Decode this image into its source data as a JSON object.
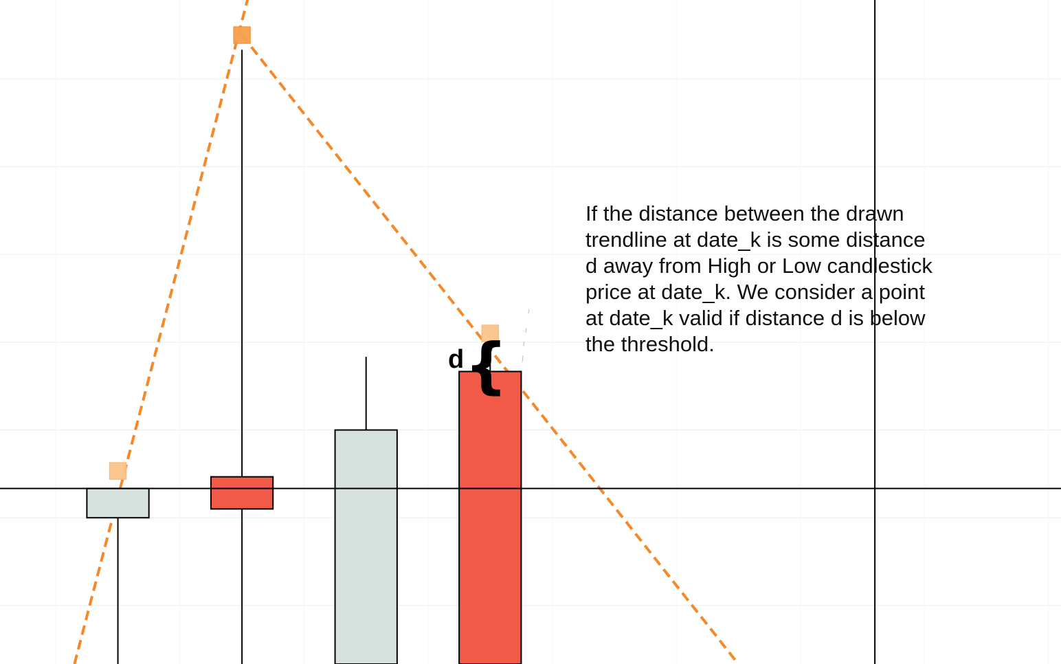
{
  "annotation": {
    "text": "If the distance between the drawn trendline at date_k is some distance d away from High or Low candlestick price at date_k. We consider a point at date_k valid if distance d is below the threshold.",
    "distance_label": "d",
    "brace_glyph": "{"
  },
  "colors": {
    "bullish_body": "#d5e2de",
    "bearish_body": "#f15a47",
    "trendline": "#f5892a",
    "pivot_marker_strong": "#f6a04d",
    "pivot_marker_light": "#fbc58c",
    "crosshair": "#000000",
    "grid": "#eeeeee"
  },
  "chart_data": {
    "type": "candlestick",
    "candles": [
      {
        "direction": "up",
        "open": 0.0,
        "close": 1.0,
        "high": 1.0,
        "low": -5.0
      },
      {
        "direction": "down",
        "open": 1.4,
        "close": 0.3,
        "high": 16.0,
        "low": -5.0
      },
      {
        "direction": "up",
        "open": -5.0,
        "close": 3.0,
        "high": 5.5,
        "low": -5.0
      },
      {
        "direction": "down",
        "open": 5.0,
        "close": -5.0,
        "high": 5.8,
        "low": -5.0
      }
    ],
    "pivots": [
      {
        "candle": 0,
        "value": 1.6,
        "style": "light"
      },
      {
        "candle": 1,
        "value": 16.5,
        "style": "strong"
      },
      {
        "candle": 3,
        "value": 6.3,
        "style": "light"
      }
    ],
    "trendlines": [
      {
        "from": {
          "candle": -0.35,
          "value": -5.0
        },
        "to": {
          "candle": 1.05,
          "value": 17.8
        }
      },
      {
        "from": {
          "candle": 1.0,
          "value": 16.5
        },
        "to": {
          "candle": 5.0,
          "value": -5.0
        }
      }
    ],
    "crosshair": {
      "candle": 6.1,
      "value": 1.0
    },
    "xlim": [
      -0.95,
      7.6
    ],
    "ylim": [
      -5.0,
      17.7
    ]
  }
}
